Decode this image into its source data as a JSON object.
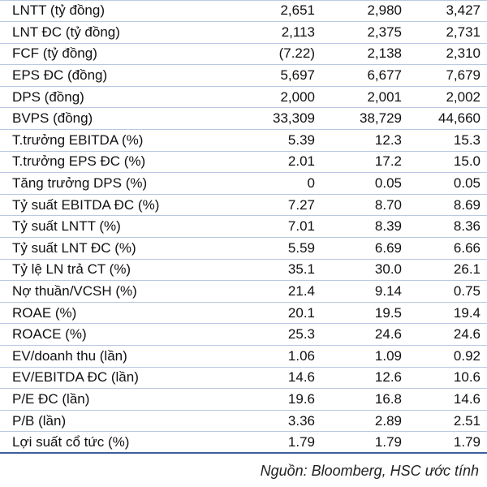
{
  "table": {
    "rows": [
      {
        "label": "LNTT (tỷ đồng)",
        "values": [
          "2,651",
          "2,980",
          "3,427"
        ]
      },
      {
        "label": "LNT ĐC (tỷ đồng)",
        "values": [
          "2,113",
          "2,375",
          "2,731"
        ]
      },
      {
        "label": "FCF (tỷ đồng)",
        "values": [
          "(7.22)",
          "2,138",
          "2,310"
        ]
      },
      {
        "label": "EPS ĐC (đồng)",
        "values": [
          "5,697",
          "6,677",
          "7,679"
        ]
      },
      {
        "label": "DPS (đồng)",
        "values": [
          "2,000",
          "2,001",
          "2,002"
        ]
      },
      {
        "label": "BVPS (đồng)",
        "values": [
          "33,309",
          "38,729",
          "44,660"
        ]
      },
      {
        "label": "T.trưởng EBITDA (%)",
        "values": [
          "5.39",
          "12.3",
          "15.3"
        ]
      },
      {
        "label": "T.trưởng EPS ĐC (%)",
        "values": [
          "2.01",
          "17.2",
          "15.0"
        ]
      },
      {
        "label": "Tăng trưởng DPS (%)",
        "values": [
          "0",
          "0.05",
          "0.05"
        ]
      },
      {
        "label": "Tỷ suất EBITDA ĐC (%)",
        "values": [
          "7.27",
          "8.70",
          "8.69"
        ]
      },
      {
        "label": "Tỷ suất LNTT (%)",
        "values": [
          "7.01",
          "8.39",
          "8.36"
        ]
      },
      {
        "label": "Tỷ suất LNT ĐC (%)",
        "values": [
          "5.59",
          "6.69",
          "6.66"
        ]
      },
      {
        "label": "Tỷ lệ LN trả CT (%)",
        "values": [
          "35.1",
          "30.0",
          "26.1"
        ]
      },
      {
        "label": "Nợ thuần/VCSH (%)",
        "values": [
          "21.4",
          "9.14",
          "0.75"
        ]
      },
      {
        "label": "ROAE (%)",
        "values": [
          "20.1",
          "19.5",
          "19.4"
        ]
      },
      {
        "label": "ROACE (%)",
        "values": [
          "25.3",
          "24.6",
          "24.6"
        ]
      },
      {
        "label": "EV/doanh thu (lần)",
        "values": [
          "1.06",
          "1.09",
          "0.92"
        ]
      },
      {
        "label": "EV/EBITDA ĐC (lần)",
        "values": [
          "14.6",
          "12.6",
          "10.6"
        ]
      },
      {
        "label": "P/E ĐC (lần)",
        "values": [
          "19.6",
          "16.8",
          "14.6"
        ]
      },
      {
        "label": "P/B (lần)",
        "values": [
          "3.36",
          "2.89",
          "2.51"
        ]
      },
      {
        "label": "Lợi suất cổ tức (%)",
        "values": [
          "1.79",
          "1.79",
          "1.79"
        ]
      }
    ]
  },
  "footer": {
    "source": "Nguồn: Bloomberg, HSC ước tính"
  }
}
